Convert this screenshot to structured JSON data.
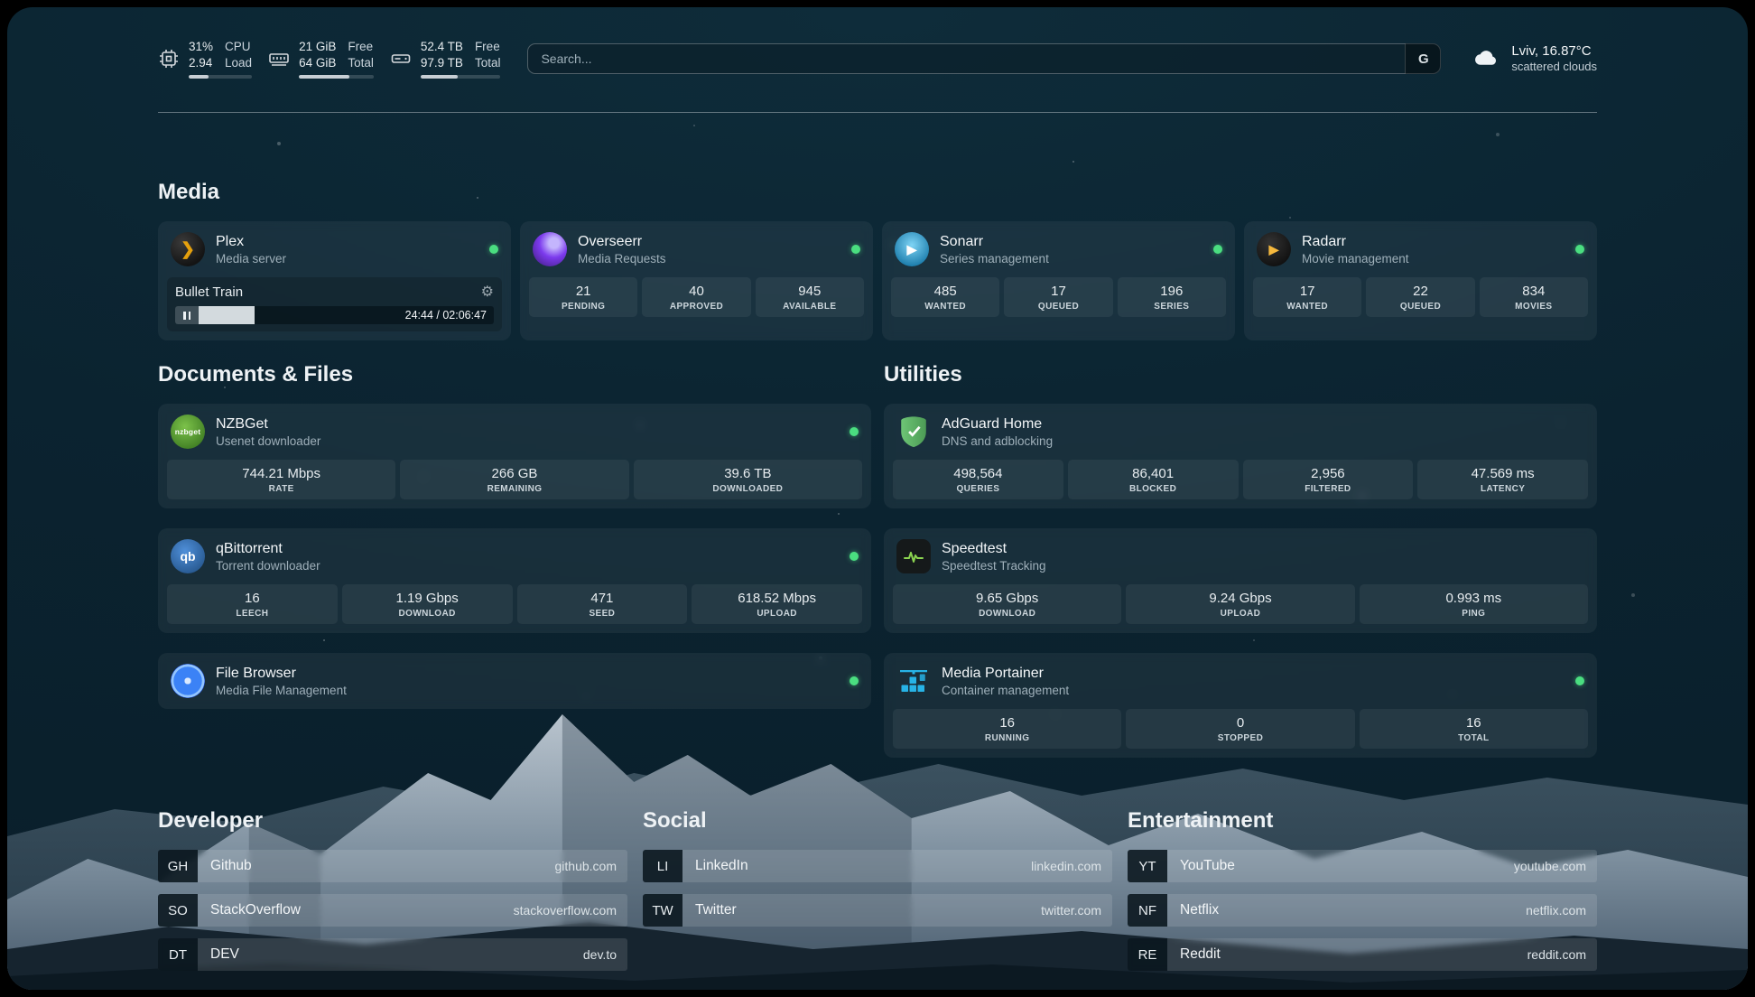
{
  "topbar": {
    "cpu": {
      "percent": "31%",
      "load": "2.94",
      "label_top": "CPU",
      "label_bottom": "Load",
      "bar": 31
    },
    "memory": {
      "free": "21 GiB",
      "total": "64 GiB",
      "free_label": "Free",
      "total_label": "Total",
      "bar": 67
    },
    "disk": {
      "free": "52.4 TB",
      "total": "97.9 TB",
      "free_label": "Free",
      "total_label": "Total",
      "bar": 46
    },
    "search": {
      "placeholder": "Search...",
      "button": "G"
    },
    "weather": {
      "location": "Lviv, 16.87°C",
      "condition": "scattered clouds"
    }
  },
  "sections": {
    "media": {
      "title": "Media",
      "plex": {
        "name": "Plex",
        "subtitle": "Media server",
        "now_playing": "Bullet Train",
        "time": "24:44 / 02:06:47",
        "progress": 19
      },
      "overseerr": {
        "name": "Overseerr",
        "subtitle": "Media Requests",
        "stats": [
          {
            "value": "21",
            "label": "PENDING"
          },
          {
            "value": "40",
            "label": "APPROVED"
          },
          {
            "value": "945",
            "label": "AVAILABLE"
          }
        ]
      },
      "sonarr": {
        "name": "Sonarr",
        "subtitle": "Series management",
        "stats": [
          {
            "value": "485",
            "label": "WANTED"
          },
          {
            "value": "17",
            "label": "QUEUED"
          },
          {
            "value": "196",
            "label": "SERIES"
          }
        ]
      },
      "radarr": {
        "name": "Radarr",
        "subtitle": "Movie management",
        "stats": [
          {
            "value": "17",
            "label": "WANTED"
          },
          {
            "value": "22",
            "label": "QUEUED"
          },
          {
            "value": "834",
            "label": "MOVIES"
          }
        ]
      }
    },
    "documents": {
      "title": "Documents & Files",
      "nzbget": {
        "name": "NZBGet",
        "subtitle": "Usenet downloader",
        "stats": [
          {
            "value": "744.21 Mbps",
            "label": "RATE"
          },
          {
            "value": "266 GB",
            "label": "REMAINING"
          },
          {
            "value": "39.6 TB",
            "label": "DOWNLOADED"
          }
        ]
      },
      "qbittorrent": {
        "name": "qBittorrent",
        "subtitle": "Torrent downloader",
        "stats": [
          {
            "value": "16",
            "label": "LEECH"
          },
          {
            "value": "1.19 Gbps",
            "label": "DOWNLOAD"
          },
          {
            "value": "471",
            "label": "SEED"
          },
          {
            "value": "618.52 Mbps",
            "label": "UPLOAD"
          }
        ]
      },
      "filebrowser": {
        "name": "File Browser",
        "subtitle": "Media File Management"
      }
    },
    "utilities": {
      "title": "Utilities",
      "adguard": {
        "name": "AdGuard Home",
        "subtitle": "DNS and adblocking",
        "stats": [
          {
            "value": "498,564",
            "label": "QUERIES"
          },
          {
            "value": "86,401",
            "label": "BLOCKED"
          },
          {
            "value": "2,956",
            "label": "FILTERED"
          },
          {
            "value": "47.569 ms",
            "label": "LATENCY"
          }
        ]
      },
      "speedtest": {
        "name": "Speedtest",
        "subtitle": "Speedtest Tracking",
        "stats": [
          {
            "value": "9.65 Gbps",
            "label": "DOWNLOAD"
          },
          {
            "value": "9.24 Gbps",
            "label": "UPLOAD"
          },
          {
            "value": "0.993 ms",
            "label": "PING"
          }
        ]
      },
      "portainer": {
        "name": "Media Portainer",
        "subtitle": "Container management",
        "stats": [
          {
            "value": "16",
            "label": "RUNNING"
          },
          {
            "value": "0",
            "label": "STOPPED"
          },
          {
            "value": "16",
            "label": "TOTAL"
          }
        ]
      }
    }
  },
  "bookmarks": {
    "developer": {
      "title": "Developer",
      "items": [
        {
          "abbr": "GH",
          "name": "Github",
          "url": "github.com"
        },
        {
          "abbr": "SO",
          "name": "StackOverflow",
          "url": "stackoverflow.com"
        },
        {
          "abbr": "DT",
          "name": "DEV",
          "url": "dev.to"
        }
      ]
    },
    "social": {
      "title": "Social",
      "items": [
        {
          "abbr": "LI",
          "name": "LinkedIn",
          "url": "linkedin.com"
        },
        {
          "abbr": "TW",
          "name": "Twitter",
          "url": "twitter.com"
        }
      ]
    },
    "entertainment": {
      "title": "Entertainment",
      "items": [
        {
          "abbr": "YT",
          "name": "YouTube",
          "url": "youtube.com"
        },
        {
          "abbr": "NF",
          "name": "Netflix",
          "url": "netflix.com"
        },
        {
          "abbr": "RE",
          "name": "Reddit",
          "url": "reddit.com"
        }
      ]
    }
  },
  "icons": {
    "plex_glyph": "❯",
    "sonarr_glyph": "▶",
    "radarr_glyph": "▶",
    "nzbget_text": "nzbget",
    "qbittorrent_text": "qb"
  },
  "colors": {
    "status_online": "#4ade80",
    "plex_accent": "#e5a00d"
  }
}
